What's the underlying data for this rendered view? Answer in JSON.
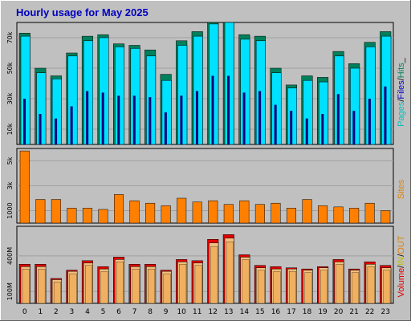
{
  "colors": {
    "background": "#c0c0c0",
    "frame": "#808080",
    "title": "#0000c0",
    "hits": "#00805c",
    "files": "#00e0ff",
    "pages": "#00007a",
    "sites": "#ff8000",
    "volume": "#e00000",
    "kbin": "#f0c080",
    "kbout": "#f0b060",
    "pages_label": "#00c0c0",
    "files_label": "#0000c0",
    "hits_label": "#00805c",
    "sites_label": "#e08000",
    "volume_label": "#e00000",
    "in_label": "#c0c000"
  },
  "chart_data": [
    {
      "type": "bar",
      "title": "Hourly usage for May 2025",
      "categories": [
        "0",
        "1",
        "2",
        "3",
        "4",
        "5",
        "6",
        "7",
        "8",
        "9",
        "10",
        "11",
        "12",
        "13",
        "14",
        "15",
        "16",
        "17",
        "18",
        "19",
        "20",
        "21",
        "22",
        "23"
      ],
      "ylim": [
        0,
        80000
      ],
      "y_ticks": [
        "10k",
        "30k",
        "50k",
        "70k"
      ],
      "legend": {
        "pages": "Pages",
        "files": "Files",
        "hits": "Hits"
      },
      "legend_seps": [
        "/",
        "/",
        "_"
      ],
      "series": [
        {
          "name": "Hits",
          "values": [
            73000,
            50000,
            45000,
            60000,
            71000,
            72000,
            66000,
            65000,
            62000,
            46000,
            68000,
            74000,
            82000,
            82000,
            72000,
            71000,
            50000,
            39000,
            45000,
            44000,
            61000,
            53000,
            67000,
            74000
          ]
        },
        {
          "name": "Files",
          "values": [
            71000,
            47000,
            43000,
            58000,
            68000,
            70000,
            64000,
            63000,
            58000,
            42000,
            65000,
            71000,
            79000,
            80000,
            69000,
            68000,
            47000,
            37000,
            42000,
            41000,
            58000,
            50000,
            64000,
            71000
          ]
        },
        {
          "name": "Pages",
          "values": [
            30000,
            20000,
            17000,
            25000,
            35000,
            34000,
            32000,
            32000,
            31000,
            21000,
            32000,
            35000,
            45000,
            45000,
            34000,
            35000,
            26000,
            22000,
            17000,
            20000,
            33000,
            22000,
            30000,
            38000
          ]
        }
      ]
    },
    {
      "type": "bar",
      "categories": [
        "0",
        "1",
        "2",
        "3",
        "4",
        "5",
        "6",
        "7",
        "8",
        "9",
        "10",
        "11",
        "12",
        "13",
        "14",
        "15",
        "16",
        "17",
        "18",
        "19",
        "20",
        "21",
        "22",
        "23"
      ],
      "ylim": [
        0,
        6000
      ],
      "y_ticks": [
        "1000",
        "3k",
        "5k"
      ],
      "legend": {
        "sites": "Sites"
      },
      "series": [
        {
          "name": "Sites",
          "values": [
            5800,
            1900,
            1900,
            1200,
            1200,
            1100,
            2300,
            1800,
            1600,
            1400,
            2000,
            1700,
            1800,
            1500,
            1800,
            1500,
            1600,
            1200,
            1900,
            1400,
            1300,
            1200,
            1600,
            1000
          ]
        }
      ]
    },
    {
      "type": "bar",
      "categories": [
        "0",
        "1",
        "2",
        "3",
        "4",
        "5",
        "6",
        "7",
        "8",
        "9",
        "10",
        "11",
        "12",
        "13",
        "14",
        "15",
        "16",
        "17",
        "18",
        "19",
        "20",
        "21",
        "22",
        "23"
      ],
      "ylim": [
        0,
        650
      ],
      "y_ticks": [
        "100M",
        "400M"
      ],
      "legend": {
        "volume": "Volume",
        "in": "IN",
        "out": "OUT"
      },
      "legend_seps": [
        "/",
        "/"
      ],
      "series": [
        {
          "name": "Volume",
          "values": [
            330,
            330,
            210,
            280,
            360,
            310,
            390,
            330,
            330,
            280,
            370,
            360,
            540,
            580,
            410,
            320,
            310,
            300,
            290,
            310,
            370,
            290,
            350,
            320
          ]
        },
        {
          "name": "IN",
          "values": [
            310,
            310,
            200,
            270,
            340,
            290,
            370,
            310,
            310,
            270,
            350,
            340,
            510,
            550,
            390,
            300,
            290,
            290,
            280,
            300,
            350,
            280,
            330,
            300
          ]
        },
        {
          "name": "OUT",
          "values": [
            290,
            290,
            180,
            250,
            320,
            270,
            350,
            290,
            290,
            250,
            330,
            320,
            480,
            520,
            370,
            280,
            270,
            270,
            260,
            280,
            330,
            260,
            310,
            280
          ]
        }
      ]
    }
  ]
}
